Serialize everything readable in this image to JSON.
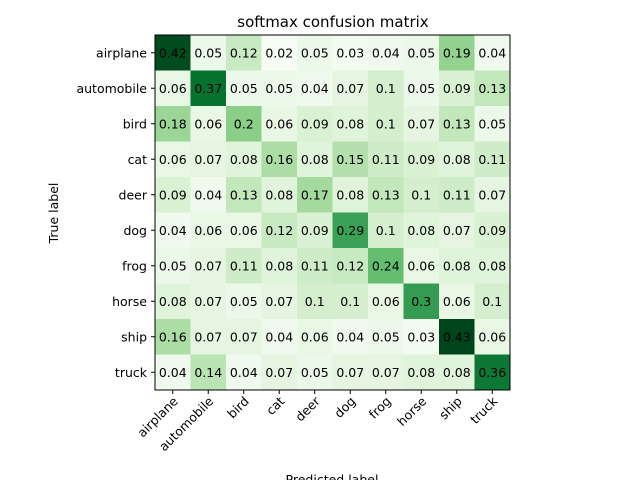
{
  "chart_data": {
    "type": "heatmap",
    "title": "softmax confusion matrix",
    "xlabel": "Predicted label",
    "ylabel": "True label",
    "x_categories": [
      "airplane",
      "automobile",
      "bird",
      "cat",
      "deer",
      "dog",
      "frog",
      "horse",
      "ship",
      "truck"
    ],
    "y_categories": [
      "airplane",
      "automobile",
      "bird",
      "cat",
      "deer",
      "dog",
      "frog",
      "horse",
      "ship",
      "truck"
    ],
    "values": [
      [
        0.42,
        0.05,
        0.12,
        0.02,
        0.05,
        0.03,
        0.04,
        0.05,
        0.19,
        0.04
      ],
      [
        0.06,
        0.37,
        0.05,
        0.05,
        0.04,
        0.07,
        0.1,
        0.05,
        0.09,
        0.13
      ],
      [
        0.18,
        0.06,
        0.2,
        0.06,
        0.09,
        0.08,
        0.1,
        0.07,
        0.13,
        0.05
      ],
      [
        0.06,
        0.07,
        0.08,
        0.16,
        0.08,
        0.15,
        0.11,
        0.09,
        0.08,
        0.11
      ],
      [
        0.09,
        0.04,
        0.13,
        0.08,
        0.17,
        0.08,
        0.13,
        0.1,
        0.11,
        0.07
      ],
      [
        0.04,
        0.06,
        0.06,
        0.12,
        0.09,
        0.29,
        0.1,
        0.08,
        0.07,
        0.09
      ],
      [
        0.05,
        0.07,
        0.11,
        0.08,
        0.11,
        0.12,
        0.24,
        0.06,
        0.08,
        0.08
      ],
      [
        0.08,
        0.07,
        0.05,
        0.07,
        0.1,
        0.1,
        0.06,
        0.3,
        0.06,
        0.1
      ],
      [
        0.16,
        0.07,
        0.07,
        0.04,
        0.06,
        0.04,
        0.05,
        0.03,
        0.43,
        0.06
      ],
      [
        0.04,
        0.14,
        0.04,
        0.07,
        0.05,
        0.07,
        0.07,
        0.08,
        0.08,
        0.36
      ]
    ],
    "colormap": "Greens",
    "color_low": "#f7fcf5",
    "color_high": "#00441b"
  }
}
